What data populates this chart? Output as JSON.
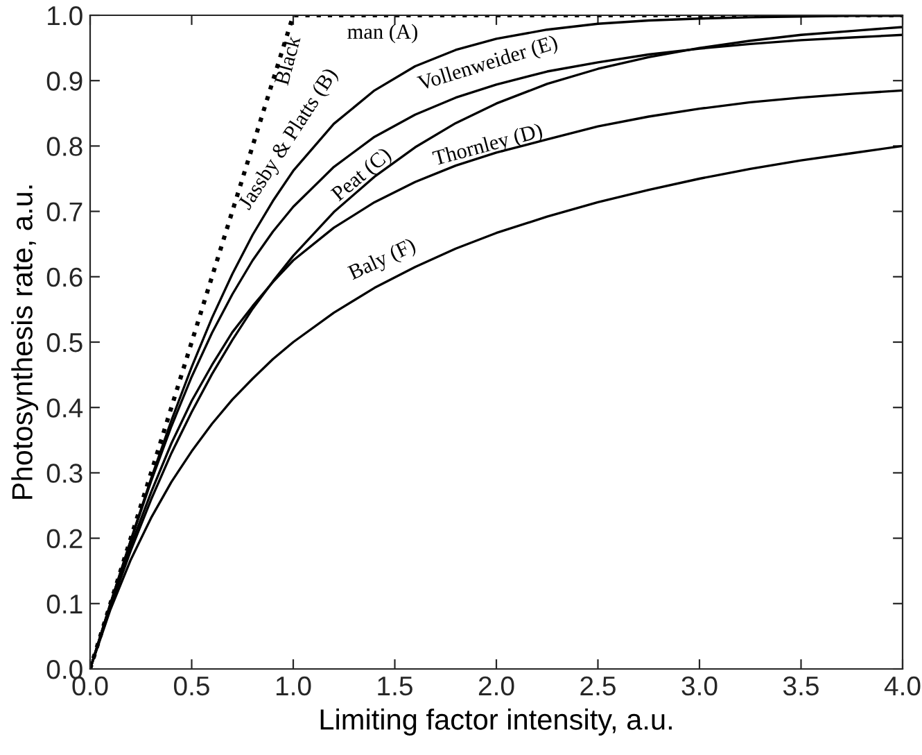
{
  "chart_data": {
    "type": "line",
    "xlabel": "Limiting factor intensity, a.u.",
    "ylabel": "Photosynthesis rate, a.u.",
    "xlim": [
      0,
      4
    ],
    "ylim": [
      0,
      1
    ],
    "xticks": [
      {
        "value": 0,
        "label": "0.0"
      },
      0.5,
      {
        "value": 1,
        "label": "1.0"
      },
      1.5,
      {
        "value": 2,
        "label": "2.0"
      },
      2.5,
      {
        "value": 3,
        "label": "3.0"
      },
      3.5,
      {
        "value": 4,
        "label": "4.0"
      }
    ],
    "yticks": [
      {
        "value": 0,
        "label": "0.0"
      },
      0.1,
      0.2,
      0.3,
      0.4,
      0.5,
      0.6,
      0.7,
      0.8,
      0.9,
      {
        "value": 1,
        "label": "1.0"
      }
    ],
    "grid": false,
    "legend": false,
    "marker": "none",
    "series": [
      {
        "color": "#000000",
        "line_style": "dotted",
        "x": [
          0,
          1,
          4
        ],
        "values": [
          0,
          1,
          1
        ]
      },
      {
        "color": "#000000",
        "line_style": "solid",
        "x": [
          0,
          0.1,
          0.2,
          0.3,
          0.4,
          0.5,
          0.6,
          0.7,
          0.8,
          0.9,
          1.0,
          1.2,
          1.4,
          1.6,
          1.8,
          2.0,
          2.25,
          2.5,
          2.75,
          3.0,
          3.25,
          3.5,
          3.75,
          4.0
        ],
        "values": [
          0,
          0.1,
          0.197,
          0.291,
          0.38,
          0.462,
          0.537,
          0.604,
          0.664,
          0.716,
          0.762,
          0.834,
          0.885,
          0.922,
          0.947,
          0.964,
          0.978,
          0.987,
          0.992,
          0.995,
          0.997,
          0.998,
          0.999,
          0.999
        ]
      },
      {
        "color": "#000000",
        "line_style": "solid",
        "x": [
          0,
          0.1,
          0.2,
          0.3,
          0.4,
          0.5,
          0.6,
          0.7,
          0.8,
          0.9,
          1.0,
          1.2,
          1.4,
          1.6,
          1.8,
          2.0,
          2.25,
          2.5,
          2.75,
          3.0,
          3.25,
          3.5,
          3.75,
          4.0
        ],
        "values": [
          0,
          0.095,
          0.181,
          0.259,
          0.33,
          0.393,
          0.451,
          0.503,
          0.551,
          0.593,
          0.632,
          0.699,
          0.753,
          0.798,
          0.835,
          0.865,
          0.895,
          0.918,
          0.936,
          0.95,
          0.961,
          0.97,
          0.976,
          0.982
        ]
      },
      {
        "color": "#000000",
        "line_style": "solid",
        "x": [
          0,
          0.1,
          0.2,
          0.3,
          0.4,
          0.5,
          0.6,
          0.7,
          0.8,
          0.9,
          1.0,
          1.2,
          1.4,
          1.6,
          1.8,
          2.0,
          2.25,
          2.5,
          2.75,
          3.0,
          3.25,
          3.5,
          3.75,
          4.0
        ],
        "values": [
          0,
          0.097,
          0.188,
          0.27,
          0.345,
          0.41,
          0.465,
          0.515,
          0.555,
          0.592,
          0.625,
          0.675,
          0.714,
          0.745,
          0.77,
          0.79,
          0.81,
          0.83,
          0.845,
          0.857,
          0.867,
          0.874,
          0.88,
          0.885
        ]
      },
      {
        "color": "#000000",
        "line_style": "solid",
        "x": [
          0,
          0.1,
          0.2,
          0.3,
          0.4,
          0.5,
          0.6,
          0.7,
          0.8,
          0.9,
          1.0,
          1.2,
          1.4,
          1.6,
          1.8,
          2.0,
          2.25,
          2.5,
          2.75,
          3.0,
          3.25,
          3.5,
          3.75,
          4.0
        ],
        "values": [
          0,
          0.1,
          0.196,
          0.287,
          0.371,
          0.447,
          0.514,
          0.573,
          0.625,
          0.669,
          0.707,
          0.768,
          0.814,
          0.848,
          0.874,
          0.894,
          0.914,
          0.928,
          0.94,
          0.949,
          0.956,
          0.962,
          0.966,
          0.97
        ]
      },
      {
        "color": "#000000",
        "line_style": "solid",
        "x": [
          0,
          0.1,
          0.2,
          0.3,
          0.4,
          0.5,
          0.6,
          0.7,
          0.8,
          0.9,
          1.0,
          1.2,
          1.4,
          1.6,
          1.8,
          2.0,
          2.25,
          2.5,
          2.75,
          3.0,
          3.25,
          3.5,
          3.75,
          4.0
        ],
        "values": [
          0,
          0.091,
          0.167,
          0.231,
          0.286,
          0.333,
          0.375,
          0.412,
          0.444,
          0.474,
          0.5,
          0.545,
          0.583,
          0.615,
          0.643,
          0.667,
          0.692,
          0.714,
          0.733,
          0.75,
          0.765,
          0.778,
          0.789,
          0.8
        ]
      }
    ],
    "annotations": [
      "Black",
      "man (A)",
      "Jassby & Platts (B)",
      "Peat (C)",
      "Thornley (D)",
      "Vollenweider (E)",
      "Baly (F)"
    ]
  }
}
